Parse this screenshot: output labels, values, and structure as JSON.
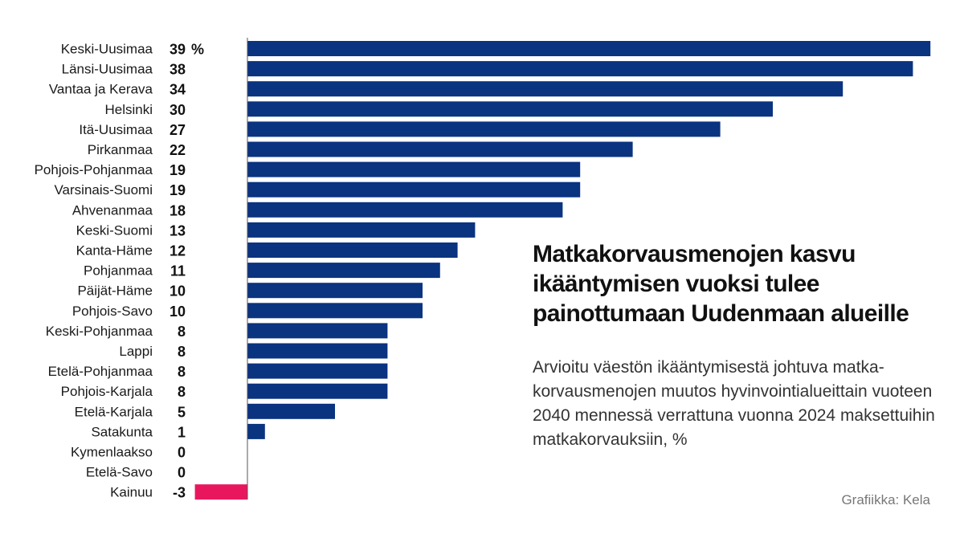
{
  "title": "Matkakorvausmenojen kasvu ikääntymisen vuoksi tulee painottumaan Uudenmaan alueille",
  "subtitle": "Arvioitu väestön ikääntymisestä johtuva matka-korvausmenojen muutos hyvinvointialueittain vuoteen 2040 mennessä verrattuna vuonna 2024 maksettuihin matkakorvauksiin, %",
  "credit": "Grafiikka: Kela",
  "chart_data": {
    "type": "bar",
    "orientation": "horizontal",
    "unit": "%",
    "categories": [
      "Keski-Uusimaa",
      "Länsi-Uusimaa",
      "Vantaa ja Kerava",
      "Helsinki",
      "Itä-Uusimaa",
      "Pirkanmaa",
      "Pohjois-Pohjanmaa",
      "Varsinais-Suomi",
      "Ahvenanmaa",
      "Keski-Suomi",
      "Kanta-Häme",
      "Pohjanmaa",
      "Päijät-Häme",
      "Pohjois-Savo",
      "Keski-Pohjanmaa",
      "Lappi",
      "Etelä-Pohjanmaa",
      "Pohjois-Karjala",
      "Etelä-Karjala",
      "Satakunta",
      "Kymenlaakso",
      "Etelä-Savo",
      "Kainuu"
    ],
    "values": [
      39,
      38,
      34,
      30,
      27,
      22,
      19,
      19,
      18,
      13,
      12,
      11,
      10,
      10,
      8,
      8,
      8,
      8,
      5,
      1,
      0,
      0,
      -3
    ],
    "positive_color": "#0a3380",
    "negative_color": "#e8175d",
    "axis_color": "#555555"
  }
}
